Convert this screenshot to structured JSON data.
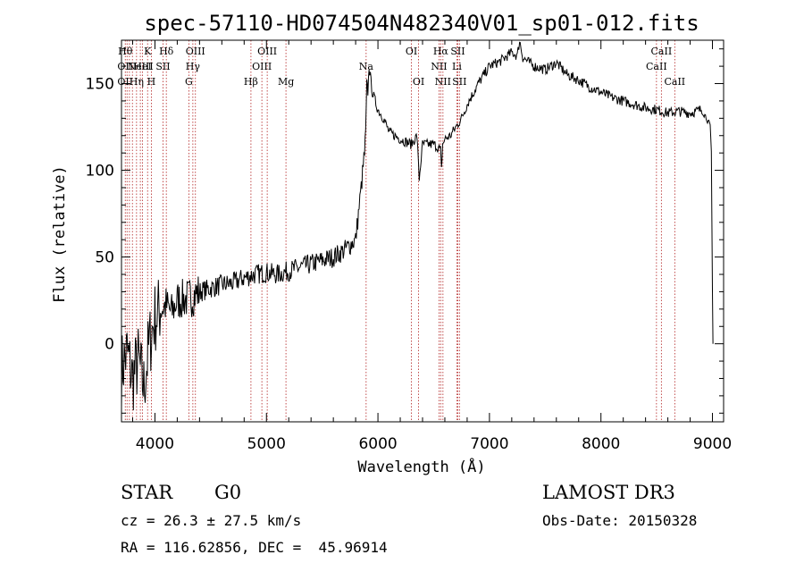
{
  "chart_data": {
    "type": "line",
    "title": "spec-57110-HD074504N482340V01_sp01-012.fits",
    "xlabel": "Wavelength (Å)",
    "ylabel": "Flux (relative)",
    "xlim": [
      3700,
      9100
    ],
    "ylim": [
      -45,
      175
    ],
    "xticks": [
      4000,
      5000,
      6000,
      7000,
      8000,
      9000
    ],
    "yticks": [
      0,
      50,
      100,
      150
    ],
    "series": [
      {
        "name": "spectrum",
        "x": [
          3700,
          3750,
          3800,
          3850,
          3900,
          3950,
          4000,
          4050,
          4100,
          4150,
          4200,
          4300,
          4400,
          4500,
          4600,
          4700,
          4800,
          4900,
          5000,
          5100,
          5200,
          5300,
          5400,
          5500,
          5600,
          5700,
          5800,
          5850,
          5880,
          5890,
          5900,
          5910,
          5920,
          5950,
          6000,
          6050,
          6100,
          6200,
          6300,
          6350,
          6370,
          6400,
          6500,
          6560,
          6570,
          6580,
          6600,
          6650,
          6700,
          6750,
          6800,
          6900,
          7000,
          7100,
          7200,
          7250,
          7270,
          7300,
          7400,
          7500,
          7600,
          7700,
          7800,
          7900,
          8000,
          8100,
          8200,
          8300,
          8400,
          8500,
          8600,
          8700,
          8800,
          8900,
          8950,
          8980,
          8990,
          9000,
          9005
        ],
        "y": [
          -15,
          -5,
          -20,
          -10,
          -25,
          0,
          15,
          20,
          22,
          18,
          25,
          26,
          30,
          32,
          34,
          35,
          38,
          40,
          41,
          40,
          42,
          44,
          46,
          48,
          50,
          54,
          60,
          90,
          110,
          120,
          150,
          145,
          160,
          145,
          135,
          130,
          122,
          118,
          115,
          120,
          95,
          115,
          115,
          112,
          100,
          115,
          118,
          120,
          125,
          130,
          138,
          150,
          160,
          163,
          168,
          166,
          175,
          165,
          160,
          158,
          162,
          155,
          152,
          148,
          145,
          142,
          140,
          138,
          136,
          135,
          133,
          134,
          133,
          135,
          130,
          125,
          110,
          30,
          0
        ]
      }
    ],
    "line_color": "#000000",
    "marker_color": "#b22222",
    "lines": [
      {
        "x": 3734,
        "top": "Hθ",
        "mid": "OII",
        "bot": "OII"
      },
      {
        "x": 3750,
        "top": "",
        "mid": "",
        "bot": ""
      },
      {
        "x": 3771,
        "top": "",
        "mid": "",
        "bot": ""
      },
      {
        "x": 3798,
        "top": "",
        "mid": "",
        "bot": ""
      },
      {
        "x": 3835,
        "top": "",
        "mid": "",
        "bot": "Hη"
      },
      {
        "x": 3869,
        "top": "",
        "mid": "NeIII",
        "bot": ""
      },
      {
        "x": 3889,
        "top": "",
        "mid": "HeI",
        "bot": ""
      },
      {
        "x": 3934,
        "top": "K",
        "mid": "",
        "bot": ""
      },
      {
        "x": 3968,
        "top": "",
        "mid": "",
        "bot": "H"
      },
      {
        "x": 4072,
        "top": "",
        "mid": "SII",
        "bot": ""
      },
      {
        "x": 4102,
        "top": "Hδ",
        "mid": "",
        "bot": ""
      },
      {
        "x": 4304,
        "top": "",
        "mid": "",
        "bot": "G"
      },
      {
        "x": 4340,
        "top": "",
        "mid": "Hγ",
        "bot": ""
      },
      {
        "x": 4363,
        "top": "OIII",
        "mid": "",
        "bot": ""
      },
      {
        "x": 4861,
        "top": "",
        "mid": "",
        "bot": "Hβ"
      },
      {
        "x": 4959,
        "top": "",
        "mid": "OIII",
        "bot": ""
      },
      {
        "x": 5007,
        "top": "OIII",
        "mid": "",
        "bot": ""
      },
      {
        "x": 5175,
        "top": "",
        "mid": "",
        "bot": "Mg"
      },
      {
        "x": 5894,
        "top": "",
        "mid": "Na",
        "bot": ""
      },
      {
        "x": 6300,
        "top": "OI",
        "mid": "",
        "bot": ""
      },
      {
        "x": 6364,
        "top": "",
        "mid": "",
        "bot": "OI"
      },
      {
        "x": 6548,
        "top": "",
        "mid": "NII",
        "bot": ""
      },
      {
        "x": 6563,
        "top": "Hα",
        "mid": "",
        "bot": ""
      },
      {
        "x": 6583,
        "top": "",
        "mid": "",
        "bot": "NII"
      },
      {
        "x": 6708,
        "top": "",
        "mid": "Li",
        "bot": ""
      },
      {
        "x": 6716,
        "top": "SII",
        "mid": "",
        "bot": ""
      },
      {
        "x": 6731,
        "top": "",
        "mid": "",
        "bot": "SII"
      },
      {
        "x": 8498,
        "top": "",
        "mid": "CaII",
        "bot": ""
      },
      {
        "x": 8542,
        "top": "CaII",
        "mid": "",
        "bot": ""
      },
      {
        "x": 8662,
        "top": "",
        "mid": "",
        "bot": "CaII"
      }
    ]
  },
  "info": {
    "object_class": "STAR",
    "subclass": "G0",
    "survey": "LAMOST DR3",
    "cz": "cz = 26.3 ± 27.5 km/s",
    "obs_date": "Obs-Date: 20150328",
    "coords": "RA = 116.62856, DEC =  45.96914"
  }
}
